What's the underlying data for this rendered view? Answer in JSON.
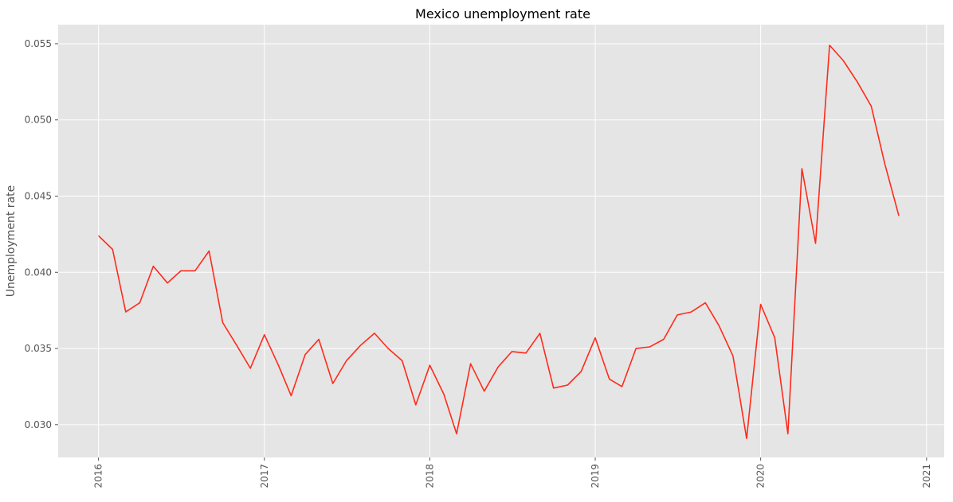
{
  "chart_data": {
    "type": "line",
    "title": "Mexico unemployment rate",
    "xlabel": "",
    "ylabel": "Unemployment rate",
    "grid": true,
    "colors": {
      "line": "#ff2a1a",
      "plot_background": "#e5e5e5",
      "grid": "#ffffff"
    },
    "xlim": [
      "2015-10-04",
      "2021-02-09"
    ],
    "ylim": [
      0.02785,
      0.05625
    ],
    "xticks": [
      {
        "date": "2016-01-01",
        "label": "2016"
      },
      {
        "date": "2017-01-01",
        "label": "2017"
      },
      {
        "date": "2018-01-01",
        "label": "2018"
      },
      {
        "date": "2019-01-01",
        "label": "2019"
      },
      {
        "date": "2020-01-01",
        "label": "2020"
      },
      {
        "date": "2021-01-01",
        "label": "2021"
      }
    ],
    "yticks": [
      {
        "value": 0.03,
        "label": "0.030"
      },
      {
        "value": 0.035,
        "label": "0.035"
      },
      {
        "value": 0.04,
        "label": "0.040"
      },
      {
        "value": 0.045,
        "label": "0.045"
      },
      {
        "value": 0.05,
        "label": "0.050"
      },
      {
        "value": 0.055,
        "label": "0.055"
      }
    ],
    "series": [
      {
        "x": [
          "2016-01",
          "2016-02",
          "2016-03",
          "2016-04",
          "2016-05",
          "2016-06",
          "2016-07",
          "2016-08",
          "2016-09",
          "2016-10",
          "2016-11",
          "2016-12",
          "2017-01",
          "2017-02",
          "2017-03",
          "2017-04",
          "2017-05",
          "2017-06",
          "2017-07",
          "2017-08",
          "2017-09",
          "2017-10",
          "2017-11",
          "2017-12",
          "2018-01",
          "2018-02",
          "2018-03",
          "2018-04",
          "2018-05",
          "2018-06",
          "2018-07",
          "2018-08",
          "2018-09",
          "2018-10",
          "2018-11",
          "2018-12",
          "2019-01",
          "2019-02",
          "2019-03",
          "2019-04",
          "2019-05",
          "2019-06",
          "2019-07",
          "2019-08",
          "2019-09",
          "2019-10",
          "2019-11",
          "2019-12",
          "2020-01",
          "2020-02",
          "2020-03",
          "2020-04",
          "2020-05",
          "2020-06",
          "2020-07",
          "2020-08",
          "2020-09",
          "2020-10",
          "2020-11"
        ],
        "values": [
          0.0424,
          0.0415,
          0.0374,
          0.038,
          0.0404,
          0.0393,
          0.0401,
          0.0401,
          0.0414,
          0.0367,
          0.0352,
          0.0337,
          0.0359,
          0.0339,
          0.0319,
          0.0346,
          0.0356,
          0.0327,
          0.0342,
          0.0352,
          0.036,
          0.035,
          0.0342,
          0.0313,
          0.0339,
          0.032,
          0.0294,
          0.034,
          0.0322,
          0.0338,
          0.0348,
          0.0347,
          0.036,
          0.0324,
          0.0326,
          0.0335,
          0.0357,
          0.033,
          0.0325,
          0.035,
          0.0351,
          0.0356,
          0.0372,
          0.0374,
          0.038,
          0.0365,
          0.0345,
          0.0291,
          0.0379,
          0.0357,
          0.0294,
          0.0468,
          0.0419,
          0.0549,
          0.0539,
          0.0525,
          0.0509,
          0.0471,
          0.0437
        ]
      }
    ]
  }
}
